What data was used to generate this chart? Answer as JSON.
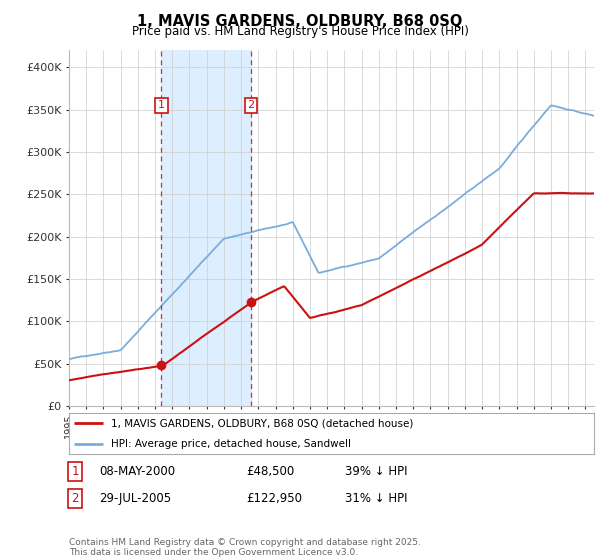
{
  "title": "1, MAVIS GARDENS, OLDBURY, B68 0SQ",
  "subtitle": "Price paid vs. HM Land Registry's House Price Index (HPI)",
  "ylim": [
    0,
    420000
  ],
  "yticks": [
    0,
    50000,
    100000,
    150000,
    200000,
    250000,
    300000,
    350000,
    400000
  ],
  "ytick_labels": [
    "£0",
    "£50K",
    "£100K",
    "£150K",
    "£200K",
    "£250K",
    "£300K",
    "£350K",
    "£400K"
  ],
  "hpi_color": "#7aaddb",
  "price_color": "#cc1111",
  "shade_color": "#ddeeff",
  "sale1_date": 2000.36,
  "sale1_price": 48500,
  "sale2_date": 2005.57,
  "sale2_price": 122950,
  "legend_property": "1, MAVIS GARDENS, OLDBURY, B68 0SQ (detached house)",
  "legend_hpi": "HPI: Average price, detached house, Sandwell",
  "table_rows": [
    {
      "num": "1",
      "date": "08-MAY-2000",
      "price": "£48,500",
      "hpi": "39% ↓ HPI"
    },
    {
      "num": "2",
      "date": "29-JUL-2005",
      "price": "£122,950",
      "hpi": "31% ↓ HPI"
    }
  ],
  "footer": "Contains HM Land Registry data © Crown copyright and database right 2025.\nThis data is licensed under the Open Government Licence v3.0.",
  "background_color": "#ffffff",
  "grid_color": "#cccccc"
}
